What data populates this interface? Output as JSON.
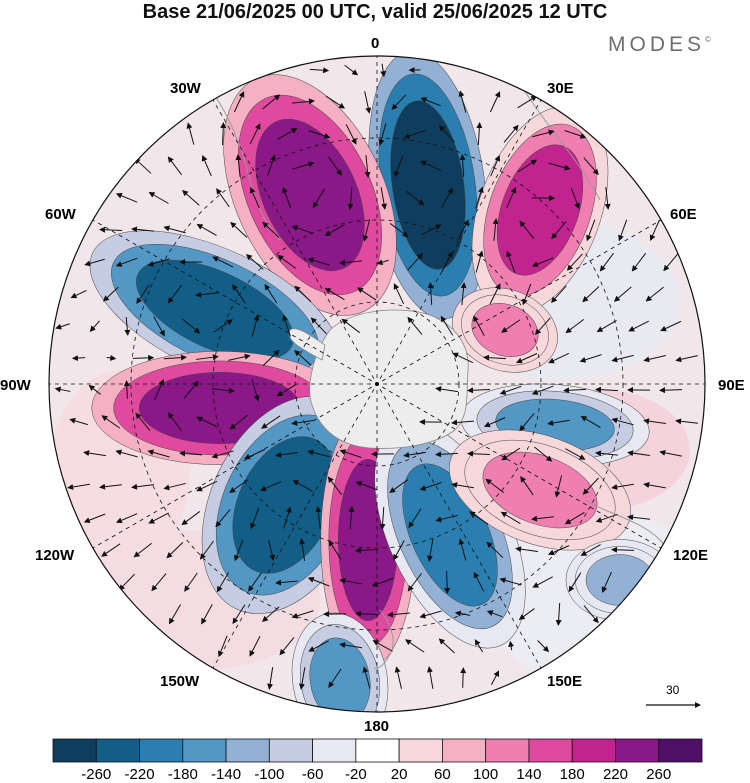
{
  "title": "Base 21/06/2025 00 UTC, valid 25/06/2025 12 UTC",
  "brand": "MODES",
  "brand_mark": "©",
  "lon_labels": {
    "l0": "0",
    "l30e": "30E",
    "l60e": "60E",
    "l90e": "90E",
    "l120e": "120E",
    "l150e": "150E",
    "l180": "180",
    "l150w": "150W",
    "l120w": "120W",
    "l90w": "90W",
    "l60w": "60W",
    "l30w": "30W"
  },
  "ref_vector": "30",
  "colorbar": {
    "labels": [
      "-260",
      "-220",
      "-180",
      "-140",
      "-100",
      "-60",
      "-20",
      "20",
      "60",
      "100",
      "140",
      "180",
      "220",
      "260"
    ],
    "colors": [
      "#0e3d5e",
      "#135e87",
      "#2a7fb0",
      "#5397c4",
      "#93b1d4",
      "#c6cde3",
      "#e8e8f2",
      "#ffffff",
      "#f7d8da",
      "#f5b0c4",
      "#ee7fb0",
      "#df4a9e",
      "#c1238f",
      "#8a1887",
      "#501067"
    ]
  },
  "anomalies": [
    {
      "name": "neg-north",
      "color": "#0e3d5e"
    },
    {
      "name": "pos-northwest",
      "color": "#8a1887"
    },
    {
      "name": "pos-northeast",
      "color": "#c1238f"
    },
    {
      "name": "neg-west",
      "color": "#135e87"
    },
    {
      "name": "pos-west",
      "color": "#8a1887"
    },
    {
      "name": "neg-southwest",
      "color": "#135e87"
    },
    {
      "name": "pos-south",
      "color": "#8a1887"
    },
    {
      "name": "neg-south",
      "color": "#2a7fb0"
    },
    {
      "name": "pos-east",
      "color": "#ee7fb0"
    },
    {
      "name": "neg-east",
      "color": "#5397c4"
    },
    {
      "name": "pos-southeast",
      "color": "#ee7fb0"
    },
    {
      "name": "neg-far-southeast",
      "color": "#93b1d4"
    },
    {
      "name": "neg-far-south",
      "color": "#5397c4"
    }
  ]
}
